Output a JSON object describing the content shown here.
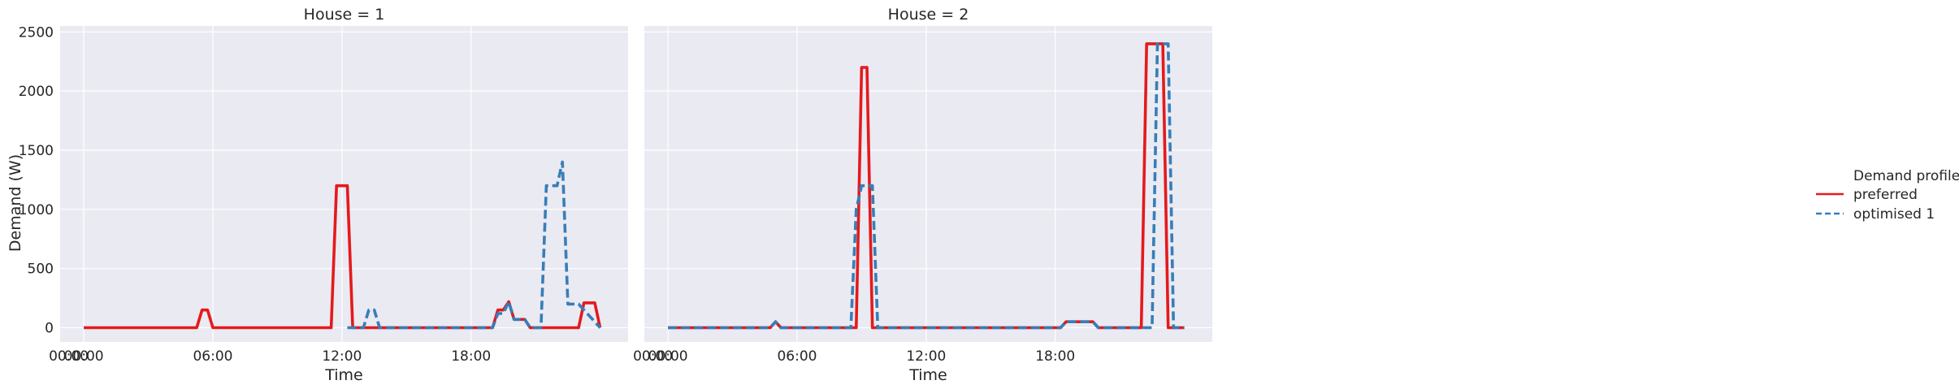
{
  "chart_data": {
    "type": "line",
    "ylabel": "Demand (W)",
    "xlabel": "Time",
    "ylim": [
      -120,
      2550
    ],
    "xlim_hours": [
      -1.1,
      25.3
    ],
    "y_ticks": [
      0,
      500,
      1000,
      1500,
      2000,
      2500
    ],
    "x_ticks": [
      {
        "hour": -0.7,
        "label": "00:00"
      },
      {
        "hour": 0,
        "label": "00:00"
      },
      {
        "hour": 6,
        "label": "06:00"
      },
      {
        "hour": 12,
        "label": "12:00"
      },
      {
        "hour": 18,
        "label": "18:00"
      }
    ],
    "grid": true,
    "legend": {
      "placement": "right",
      "title": "Demand profile",
      "entries": [
        {
          "name": "preferred",
          "color": "#e41a1c",
          "dash": "solid"
        },
        {
          "name": "optimised 1",
          "color": "#377eb8",
          "dash": "dashed"
        }
      ]
    },
    "colors": {
      "preferred": "#e41a1c",
      "optimised": "#377eb8",
      "background": "#eaeaf2",
      "grid": "#ffffff"
    },
    "panels": [
      {
        "title": "House = 1",
        "series": [
          {
            "name": "preferred",
            "x": [
              0,
              5.25,
              5.5,
              5.75,
              6.0,
              11.5,
              11.75,
              12.25,
              12.5,
              19.0,
              19.25,
              19.5,
              19.75,
              20.0,
              20.5,
              20.75,
              23.0,
              23.25,
              23.75,
              24.0
            ],
            "y": [
              0,
              0,
              150,
              150,
              0,
              0,
              1200,
              1200,
              0,
              0,
              150,
              150,
              220,
              70,
              70,
              0,
              0,
              210,
              210,
              0
            ]
          },
          {
            "name": "optimised 1",
            "x": [
              12.25,
              13.0,
              13.25,
              13.5,
              13.75,
              19.0,
              19.25,
              19.5,
              19.75,
              20.0,
              20.5,
              20.75,
              21.25,
              21.5,
              22.0,
              22.25,
              22.5,
              22.75,
              23.0,
              24.0
            ],
            "y": [
              0,
              0,
              150,
              150,
              0,
              0,
              120,
              120,
              220,
              70,
              70,
              0,
              0,
              1200,
              1200,
              1400,
              200,
              200,
              200,
              0
            ]
          }
        ]
      },
      {
        "title": "House = 2",
        "series": [
          {
            "name": "preferred",
            "x": [
              0,
              4.75,
              5.0,
              5.25,
              8.5,
              8.75,
              9.0,
              9.25,
              9.5,
              18.25,
              18.5,
              19.75,
              20.0,
              22.0,
              22.25,
              23.0,
              23.25,
              24.0
            ],
            "y": [
              0,
              0,
              50,
              0,
              0,
              0,
              2200,
              2200,
              0,
              0,
              50,
              50,
              0,
              0,
              2400,
              2400,
              0,
              0
            ]
          },
          {
            "name": "optimised 1",
            "x": [
              0,
              4.75,
              5.0,
              5.25,
              8.5,
              8.75,
              9.0,
              9.25,
              9.5,
              9.75,
              18.25,
              18.5,
              19.75,
              20.0,
              22.0,
              22.5,
              22.75,
              23.25,
              23.5,
              24.0
            ],
            "y": [
              0,
              0,
              50,
              0,
              0,
              1000,
              1200,
              1200,
              1200,
              0,
              0,
              50,
              50,
              0,
              0,
              0,
              2400,
              2400,
              0,
              0
            ]
          }
        ]
      }
    ]
  }
}
